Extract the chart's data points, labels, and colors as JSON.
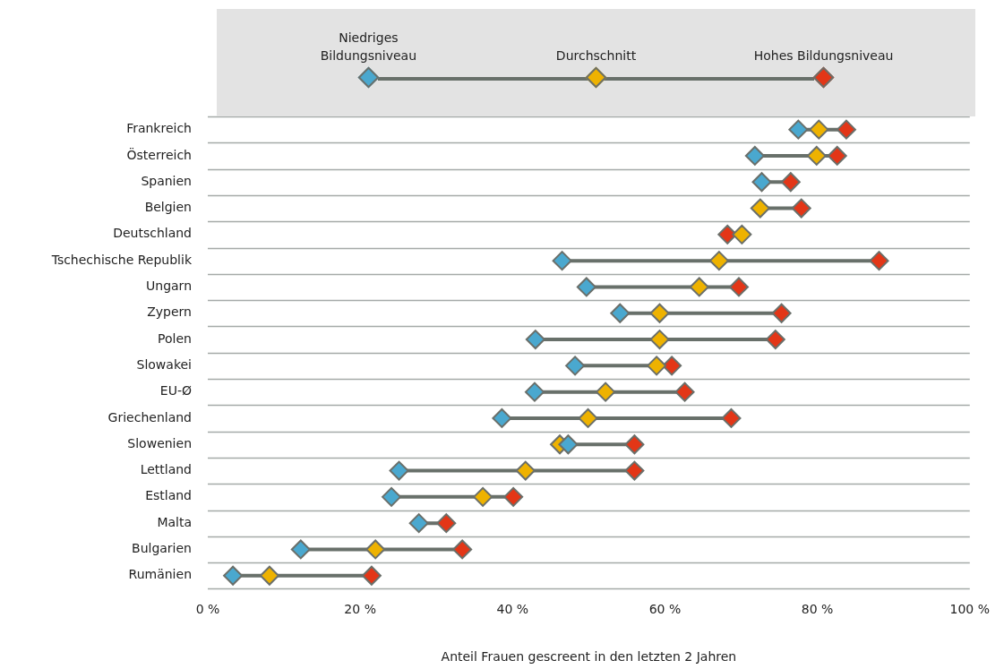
{
  "chart_data": {
    "type": "scatter",
    "orientation": "horizontal",
    "xlabel": "Anteil Frauen gescreent in den letzten 2 Jahren",
    "categories": [
      "Frankreich",
      "Österreich",
      "Spanien",
      "Belgien",
      "Deutschland",
      "Tschechische Republik",
      "Ungarn",
      "Zypern",
      "Polen",
      "Slowakei",
      "EU-Ø",
      "Griechenland",
      "Slowenien",
      "Lettland",
      "Estland",
      "Malta",
      "Bulgarien",
      "Rumänien"
    ],
    "series": [
      {
        "name": "Niedriges Bildungsniveau",
        "color": "#4aa8cf",
        "values": [
          77.5,
          71.8,
          72.7,
          null,
          null,
          46.5,
          49.7,
          54.1,
          43.0,
          48.2,
          42.9,
          38.6,
          47.3,
          25.1,
          24.1,
          27.7,
          12.2,
          3.3
        ]
      },
      {
        "name": "Durchschnitt",
        "color": "#eeb200",
        "values": [
          80.2,
          79.9,
          null,
          72.5,
          70.1,
          67.1,
          64.5,
          59.3,
          59.3,
          58.9,
          52.2,
          49.9,
          46.2,
          41.7,
          36.1,
          null,
          22.0,
          8.1
        ]
      },
      {
        "name": "Hohes Bildungsniveau",
        "color": "#e33617",
        "values": [
          83.8,
          82.6,
          76.5,
          77.9,
          68.2,
          88.1,
          69.7,
          75.3,
          74.5,
          60.9,
          62.6,
          68.7,
          56.0,
          56.0,
          40.1,
          31.3,
          33.4,
          21.5
        ]
      }
    ],
    "xlim": [
      0,
      100
    ],
    "xticks": [
      {
        "value": 0,
        "label": "0 %"
      },
      {
        "value": 20,
        "label": "20 %"
      },
      {
        "value": 40,
        "label": "40 %"
      },
      {
        "value": 60,
        "label": "60 %"
      },
      {
        "value": 80,
        "label": "80 %"
      },
      {
        "value": 100,
        "label": "100 %"
      }
    ],
    "grid": "y",
    "legend": "top",
    "marker": "diamond"
  }
}
